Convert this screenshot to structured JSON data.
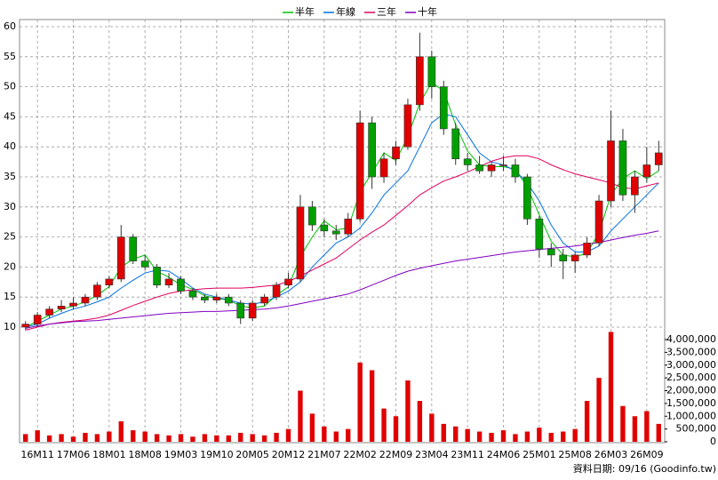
{
  "chart_data": {
    "type": "candlestick",
    "footnote": "資料日期: 09/16 (Goodinfo.tw)",
    "categories": [
      null,
      "16M11",
      null,
      null,
      "17M06",
      null,
      null,
      "18M01",
      null,
      null,
      "18M08",
      null,
      null,
      "19M03",
      null,
      null,
      "19M10",
      null,
      null,
      "20M05",
      null,
      null,
      "20M12",
      null,
      null,
      "21M07",
      null,
      null,
      "22M02",
      null,
      null,
      "22M09",
      null,
      null,
      "23M04",
      null,
      null,
      "23M11",
      null,
      null,
      "24M06",
      null,
      null,
      "25M01",
      null,
      null,
      "25M08",
      null,
      null,
      "26M03",
      null,
      null,
      "26M09",
      null
    ],
    "open": [
      10,
      10.5,
      12,
      13,
      13.5,
      14,
      15,
      17,
      18,
      25,
      21,
      20,
      17,
      18,
      16,
      15,
      14.5,
      15,
      14,
      11.5,
      14,
      15,
      17,
      18,
      30,
      27,
      26,
      25.5,
      28,
      44,
      35,
      38,
      40,
      47,
      55,
      50,
      43,
      38,
      37,
      36,
      37,
      37,
      35,
      28,
      23,
      22,
      21,
      22,
      24,
      31,
      41,
      32,
      35,
      37
    ],
    "high": [
      11,
      12.5,
      13.5,
      14.5,
      15,
      15.5,
      17.5,
      18.5,
      27,
      25.5,
      22,
      20.5,
      19,
      18.5,
      16.5,
      15.5,
      15.5,
      15.5,
      14.5,
      14.5,
      15.5,
      17.5,
      19,
      32,
      31,
      28,
      27,
      29,
      46,
      45,
      39,
      41,
      48,
      59,
      56,
      51,
      44,
      39,
      38.5,
      37.5,
      38.5,
      38,
      35.5,
      28.5,
      24,
      23,
      22.5,
      25,
      32,
      46,
      43,
      36,
      40,
      41
    ],
    "low": [
      9.5,
      10,
      11.5,
      12.5,
      13,
      13.5,
      14.5,
      16.5,
      17.5,
      20.5,
      19.5,
      16.5,
      16.5,
      15.5,
      14.5,
      14,
      14,
      13.5,
      10.5,
      11,
      13.5,
      14.5,
      16.5,
      17.5,
      26,
      25,
      24.5,
      25,
      27.5,
      33,
      34,
      37,
      39.5,
      46,
      48,
      42,
      37,
      36,
      35.5,
      35,
      36,
      34,
      27,
      21.5,
      20,
      18,
      19,
      21.5,
      23.5,
      30,
      31,
      29,
      34,
      36
    ],
    "close": [
      10.5,
      12,
      13,
      13.5,
      14,
      15,
      17,
      18,
      25,
      21,
      20,
      17,
      18,
      16,
      15,
      14.5,
      15,
      14,
      11.5,
      14,
      15,
      17,
      18,
      30,
      27,
      26,
      25.5,
      28,
      44,
      35,
      38,
      40,
      47,
      55,
      50,
      43,
      38,
      37,
      36,
      37,
      37,
      35,
      28,
      23,
      22,
      21,
      22,
      24,
      31,
      41,
      32,
      35,
      37,
      39
    ],
    "up_color": "#e00000",
    "down_color": "#00a000",
    "ylim": [
      10,
      60
    ],
    "yticks": [
      10,
      15,
      20,
      25,
      30,
      35,
      40,
      45,
      50,
      55,
      60
    ],
    "grid": true,
    "series": [
      {
        "name": "半年",
        "color": "#00c000",
        "values": [
          10,
          11,
          12,
          13,
          13.5,
          14.2,
          15.3,
          16.7,
          20,
          21.3,
          22,
          19.3,
          18.3,
          17,
          16.3,
          15.2,
          14.8,
          14.5,
          13.5,
          13.2,
          13.5,
          15.3,
          16.7,
          21.7,
          25,
          27.7,
          26.2,
          26.5,
          32.5,
          35.7,
          39,
          37.7,
          41.7,
          47.3,
          50.7,
          49.3,
          43.7,
          39.3,
          37,
          36.7,
          36.7,
          36.3,
          33.3,
          28.7,
          24.3,
          22,
          21.7,
          22.3,
          25.7,
          32,
          34.7,
          36,
          34.7,
          36
        ]
      },
      {
        "name": "年線",
        "color": "#0070e0",
        "values": [
          10,
          10.5,
          11.5,
          12.3,
          13,
          13.5,
          14.2,
          15,
          16.5,
          17.8,
          19,
          19.5,
          19.3,
          18,
          16.5,
          15.5,
          15,
          14.5,
          14,
          13.8,
          14.2,
          15,
          16,
          17.5,
          20,
          22,
          24,
          25,
          26.5,
          29,
          32,
          34,
          36,
          40,
          44,
          45.5,
          45,
          42,
          39,
          37.5,
          37,
          36,
          34,
          31,
          27,
          24,
          22.5,
          22.5,
          23.5,
          26,
          28,
          30,
          32,
          34
        ]
      },
      {
        "name": "三年",
        "color": "#e00060",
        "values": [
          9.5,
          10,
          10.5,
          10.8,
          11,
          11.2,
          11.5,
          12,
          12.8,
          13.6,
          14.3,
          15,
          15.6,
          16,
          16.2,
          16.4,
          16.5,
          16.5,
          16.5,
          16.6,
          16.8,
          17,
          17.6,
          18.5,
          19.5,
          20.5,
          21.5,
          23,
          24.5,
          25.8,
          27,
          28.6,
          30.2,
          32,
          33.2,
          34.3,
          35,
          35.8,
          36.7,
          37.6,
          38.2,
          38.5,
          38.5,
          38,
          37,
          36.2,
          35.5,
          35,
          34.5,
          34,
          33.2,
          33,
          33.5,
          34
        ]
      },
      {
        "name": "十年",
        "color": "#8000c0",
        "values": [
          9.8,
          10.2,
          10.5,
          10.7,
          10.9,
          11,
          11.1,
          11.3,
          11.5,
          11.7,
          11.9,
          12.1,
          12.3,
          12.4,
          12.5,
          12.6,
          12.6,
          12.7,
          12.8,
          12.9,
          13,
          13.2,
          13.5,
          13.9,
          14.3,
          14.7,
          15.1,
          15.5,
          16.2,
          17,
          17.8,
          18.6,
          19.3,
          19.8,
          20.2,
          20.6,
          21,
          21.3,
          21.6,
          21.9,
          22.2,
          22.5,
          22.7,
          22.9,
          23.1,
          23.3,
          23.5,
          23.8,
          24.1,
          24.5,
          24.9,
          25.3,
          25.6,
          26
        ]
      }
    ],
    "volume": {
      "color": "#e00000",
      "values": [
        300000,
        450000,
        250000,
        300000,
        200000,
        350000,
        300000,
        400000,
        800000,
        450000,
        400000,
        300000,
        250000,
        300000,
        200000,
        300000,
        250000,
        250000,
        350000,
        300000,
        250000,
        350000,
        500000,
        2000000,
        1100000,
        600000,
        400000,
        500000,
        3100000,
        2800000,
        1300000,
        1000000,
        2400000,
        1600000,
        1100000,
        700000,
        600000,
        500000,
        400000,
        350000,
        450000,
        300000,
        400000,
        550000,
        350000,
        400000,
        500000,
        1600000,
        2500000,
        4300000,
        1400000,
        1000000,
        1200000,
        700000
      ],
      "ylim": [
        0,
        4000000
      ],
      "yticks": [
        0,
        {
          "value": 500000,
          "label": "500,000"
        },
        {
          "value": 1000000,
          "label": "1,000,000"
        },
        {
          "value": 1500000,
          "label": "1,500,000"
        },
        {
          "value": 2000000,
          "label": "2,000,000"
        },
        {
          "value": 2500000,
          "label": "2,500,000"
        },
        {
          "value": 3000000,
          "label": "3,000,000"
        },
        {
          "value": 3500000,
          "label": "3,500,000"
        },
        {
          "value": 4000000,
          "label": "4,000,000"
        }
      ]
    }
  }
}
